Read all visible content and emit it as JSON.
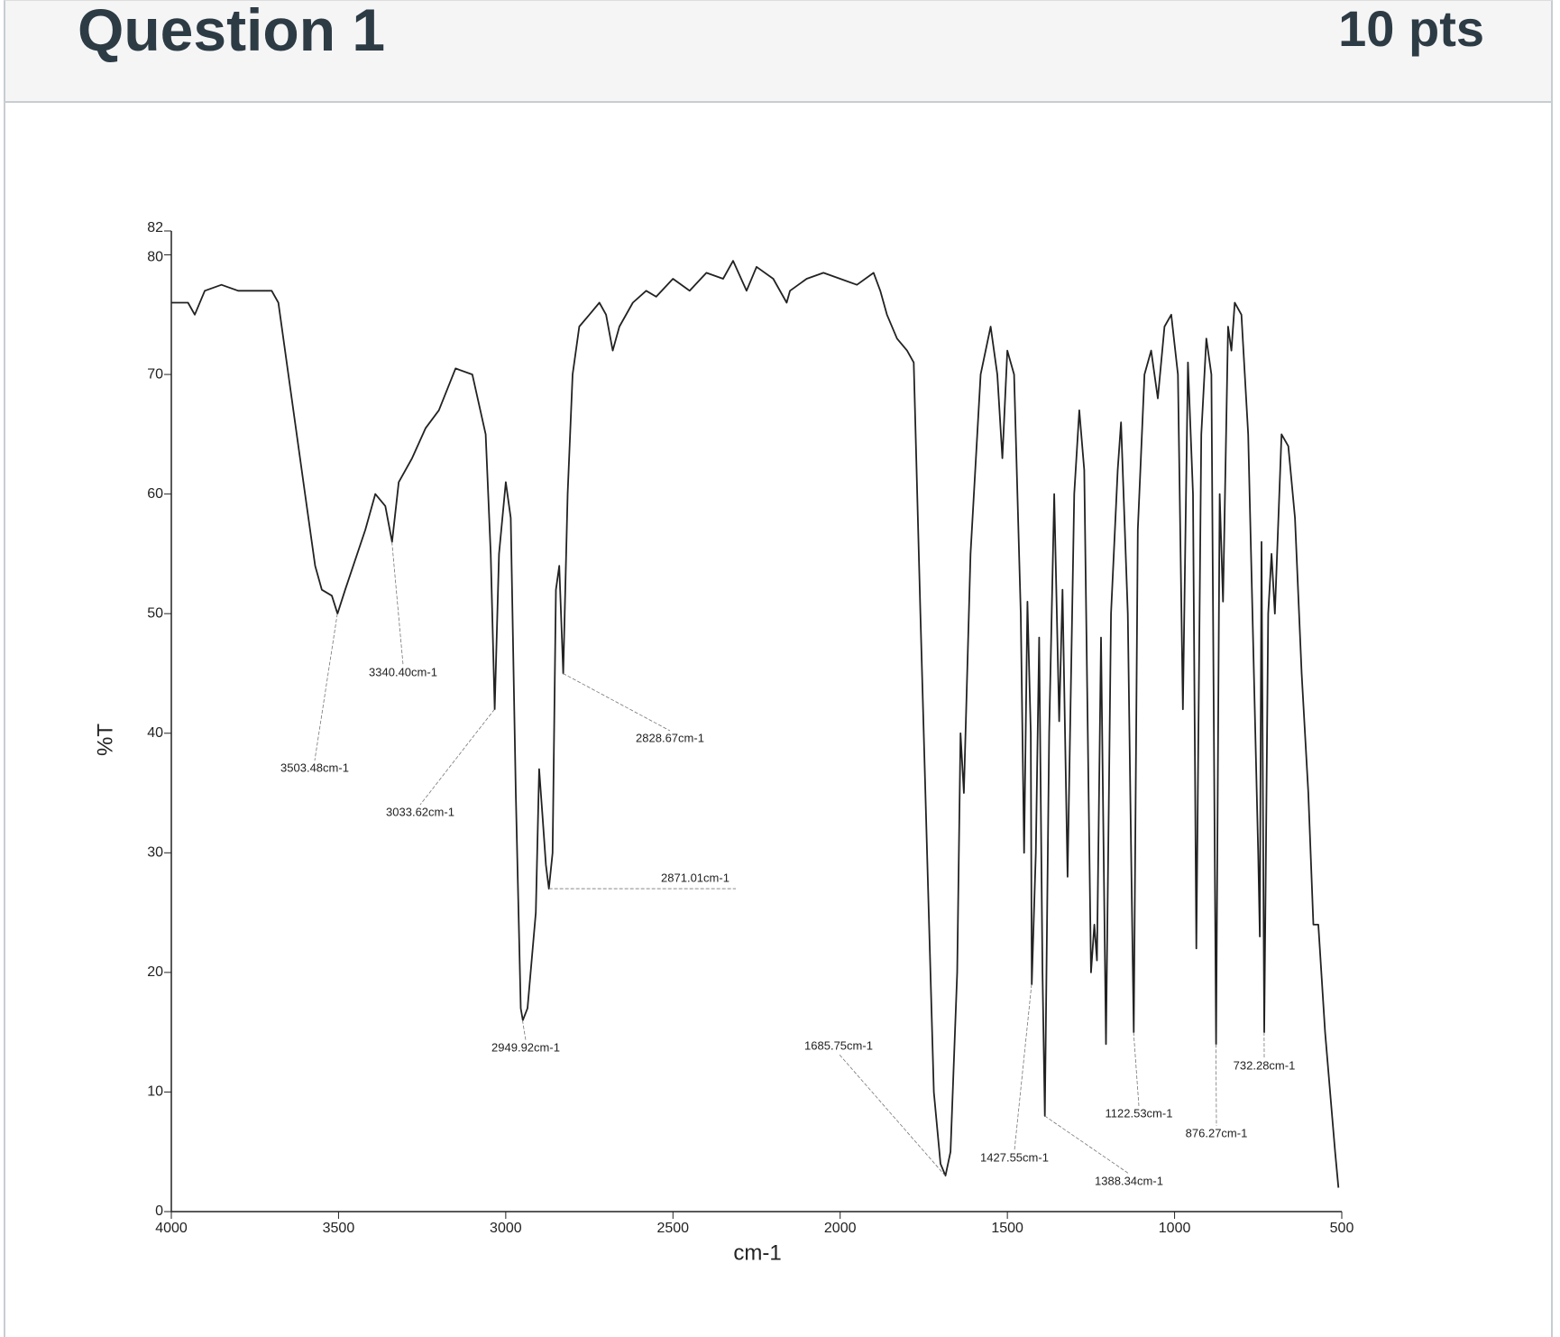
{
  "header": {
    "title": "Question 1",
    "points": "10 pts"
  },
  "chart_data": {
    "type": "line",
    "xlabel": "cm-1",
    "ylabel": "%T",
    "color": "#222222",
    "xlim": [
      4000,
      500
    ],
    "ylim": [
      0,
      82
    ],
    "xticks": [
      4000,
      3500,
      3000,
      2500,
      2000,
      1500,
      1000,
      500
    ],
    "yticks": [
      0,
      10,
      20,
      30,
      40,
      50,
      60,
      70,
      80,
      82
    ],
    "x": [
      4000,
      3950,
      3930,
      3900,
      3850,
      3800,
      3700,
      3680,
      3650,
      3600,
      3570,
      3550,
      3520,
      3503,
      3480,
      3420,
      3390,
      3360,
      3340,
      3320,
      3280,
      3240,
      3200,
      3150,
      3100,
      3060,
      3045,
      3033,
      3020,
      3000,
      2985,
      2970,
      2955,
      2949,
      2935,
      2910,
      2900,
      2890,
      2880,
      2871,
      2860,
      2850,
      2840,
      2828,
      2815,
      2800,
      2780,
      2750,
      2720,
      2700,
      2680,
      2660,
      2620,
      2580,
      2550,
      2500,
      2450,
      2400,
      2350,
      2320,
      2280,
      2250,
      2200,
      2160,
      2150,
      2100,
      2050,
      2000,
      1950,
      1900,
      1880,
      1860,
      1830,
      1800,
      1780,
      1760,
      1740,
      1720,
      1700,
      1685,
      1670,
      1650,
      1640,
      1630,
      1610,
      1580,
      1550,
      1530,
      1515,
      1500,
      1480,
      1460,
      1450,
      1440,
      1430,
      1427,
      1415,
      1405,
      1395,
      1388,
      1375,
      1360,
      1345,
      1335,
      1320,
      1300,
      1285,
      1270,
      1250,
      1240,
      1232,
      1220,
      1205,
      1190,
      1170,
      1160,
      1140,
      1130,
      1122,
      1110,
      1090,
      1070,
      1050,
      1030,
      1010,
      990,
      975,
      960,
      945,
      935,
      920,
      905,
      890,
      876,
      865,
      855,
      840,
      830,
      820,
      800,
      780,
      750,
      745,
      740,
      732,
      720,
      710,
      700,
      680,
      660,
      640,
      620,
      600,
      585,
      570,
      550,
      520,
      510
    ],
    "values": [
      76,
      76,
      75,
      77,
      77.5,
      77,
      77,
      76,
      70,
      60,
      54,
      52,
      51.5,
      50,
      52,
      57,
      60,
      59,
      56,
      61,
      63,
      65.5,
      67,
      70.5,
      70,
      65,
      55,
      42,
      55,
      61,
      58,
      35,
      17,
      16,
      17,
      25,
      37,
      33,
      29,
      27,
      30,
      52,
      54,
      45,
      60,
      70,
      74,
      75,
      76,
      75,
      72,
      74,
      76,
      77,
      76.5,
      78,
      77,
      78.5,
      78,
      79.5,
      77,
      79,
      78,
      76,
      77,
      78,
      78.5,
      78,
      77.5,
      78.5,
      77,
      75,
      73,
      72,
      71,
      50,
      30,
      10,
      4,
      3,
      5,
      20,
      40,
      35,
      55,
      70,
      74,
      70,
      63,
      72,
      70,
      50,
      30,
      51,
      40,
      19,
      30,
      48,
      20,
      8,
      40,
      60,
      41,
      52,
      28,
      60,
      67,
      62,
      20,
      24,
      21,
      48,
      14,
      50,
      62,
      66,
      50,
      30,
      15,
      57,
      70,
      72,
      68,
      74,
      75,
      70,
      42,
      71,
      60,
      22,
      65,
      73,
      70,
      14,
      60,
      51,
      74,
      72,
      76,
      75,
      65,
      30,
      23,
      56,
      15,
      50,
      55,
      50,
      65,
      64,
      58,
      45,
      35,
      24,
      24,
      15,
      5,
      2
    ],
    "annotations": [
      {
        "text": "3503.48cm-1",
        "x": 3503.48,
        "y": 50
      },
      {
        "text": "3340.40cm-1",
        "x": 3340.4,
        "y": 56
      },
      {
        "text": "3033.62cm-1",
        "x": 3033.62,
        "y": 42
      },
      {
        "text": "2828.67cm-1",
        "x": 2828.67,
        "y": 45
      },
      {
        "text": "2871.01cm-1",
        "x": 2871.01,
        "y": 27
      },
      {
        "text": "2949.92cm-1",
        "x": 2949.92,
        "y": 16
      },
      {
        "text": "1685.75cm-1",
        "x": 1685.75,
        "y": 3
      },
      {
        "text": "1427.55cm-1",
        "x": 1427.55,
        "y": 19
      },
      {
        "text": "1388.34cm-1",
        "x": 1388.34,
        "y": 8
      },
      {
        "text": "1122.53cm-1",
        "x": 1122.53,
        "y": 15
      },
      {
        "text": "876.27cm-1",
        "x": 876.27,
        "y": 14
      },
      {
        "text": "732.28cm-1",
        "x": 732.28,
        "y": 15
      }
    ]
  }
}
